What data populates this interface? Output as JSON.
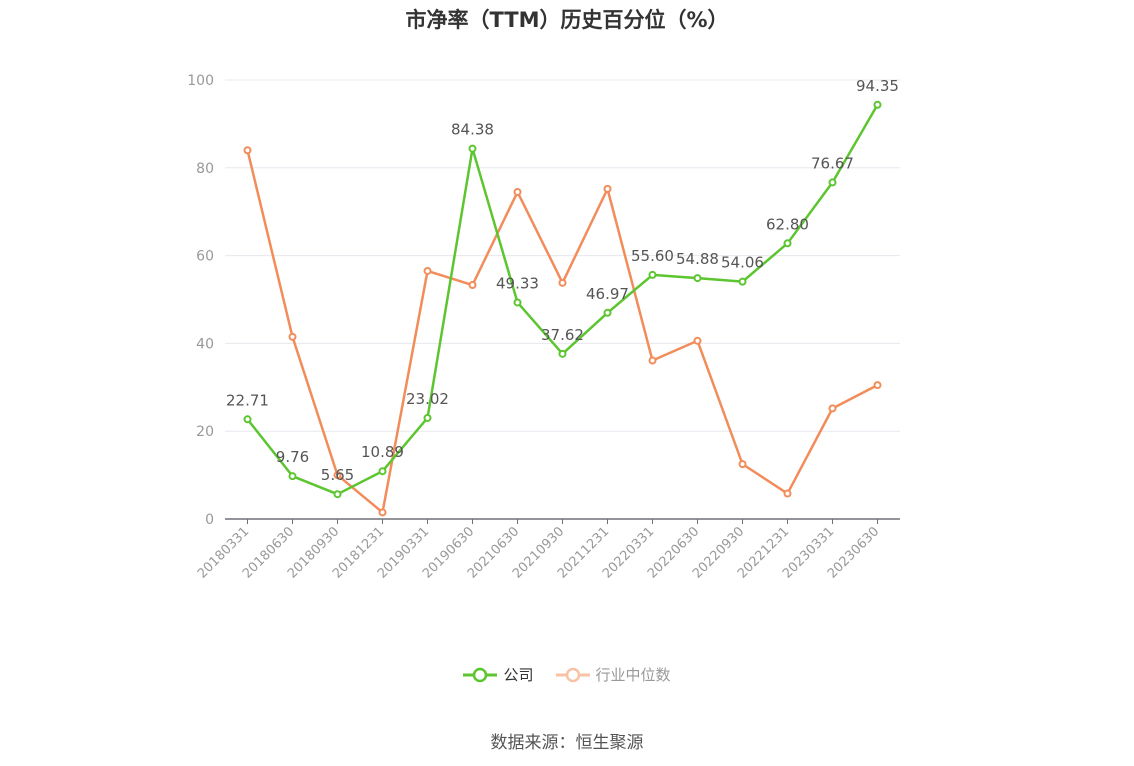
{
  "chart_data": {
    "type": "line",
    "title": "市净率（TTM）历史百分位（%）",
    "categories": [
      "20180331",
      "20180630",
      "20180930",
      "20181231",
      "20190331",
      "20190630",
      "20210630",
      "20210930",
      "20211231",
      "20220331",
      "20220630",
      "20220930",
      "20221231",
      "20230331",
      "20230630"
    ],
    "ylim": [
      0,
      100
    ],
    "yticks": [
      0,
      20,
      40,
      60,
      80,
      100
    ],
    "grid": true,
    "legend_position": "bottom",
    "series": [
      {
        "name": "公司",
        "color": "#5cc52f",
        "show_labels": true,
        "values": [
          22.71,
          9.76,
          5.65,
          10.89,
          23.02,
          84.38,
          49.33,
          37.62,
          46.97,
          55.6,
          54.88,
          54.06,
          62.8,
          76.67,
          94.35
        ],
        "labels": [
          "22.71",
          "9.76",
          "5.65",
          "10.89",
          "23.02",
          "84.38",
          "49.33",
          "37.62",
          "46.97",
          "55.60",
          "54.88",
          "54.06",
          "62.80",
          "76.67",
          "94.35"
        ]
      },
      {
        "name": "行业中位数",
        "color": "#f28c5a",
        "show_labels": false,
        "values": [
          84.0,
          41.5,
          10.0,
          1.5,
          56.5,
          53.3,
          74.5,
          53.8,
          75.2,
          36.1,
          40.6,
          12.5,
          5.8,
          25.2,
          30.5
        ]
      }
    ]
  },
  "legend": {
    "company": "公司",
    "industry": "行业中位数"
  },
  "source": "数据来源：恒生聚源"
}
